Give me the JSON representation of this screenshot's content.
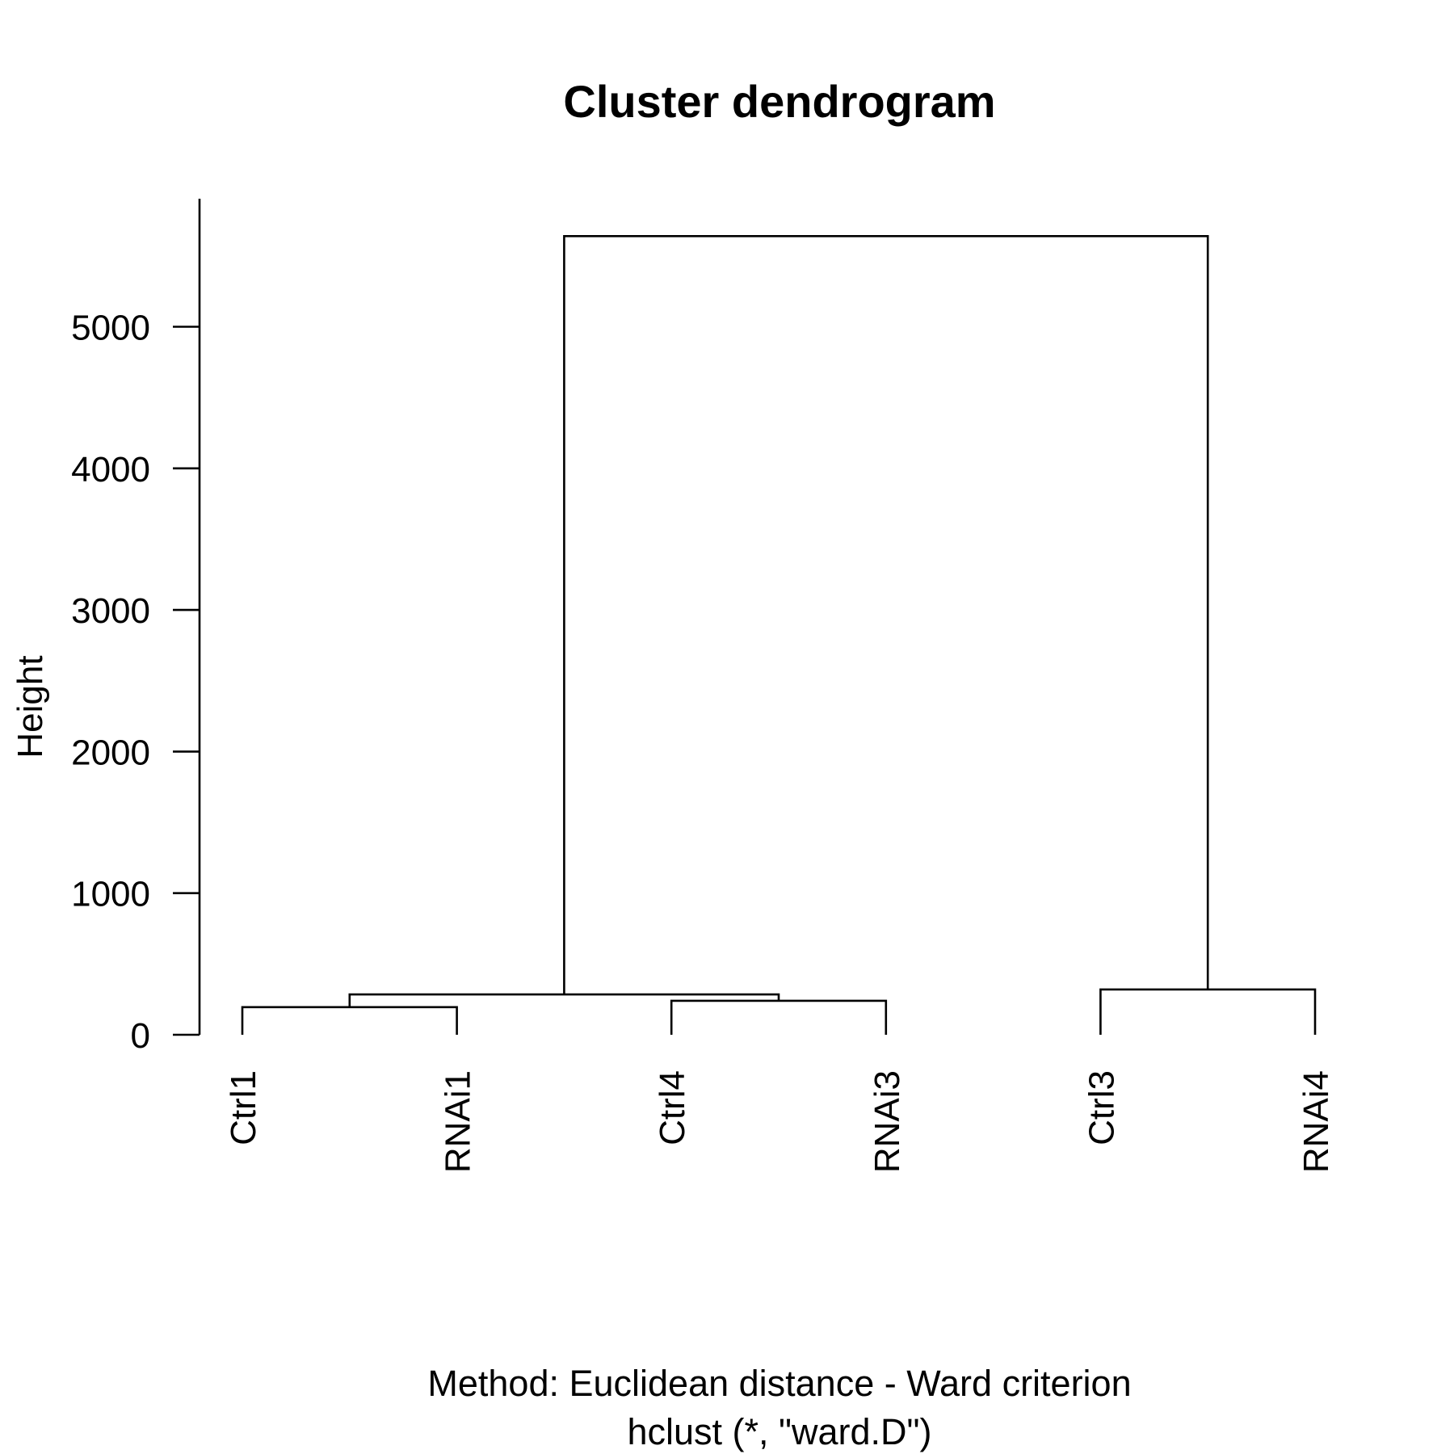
{
  "chart_data": {
    "type": "dendrogram",
    "title": "Cluster dendrogram",
    "ylabel": "Height",
    "xlabel_lines": [
      "Method: Euclidean distance - Ward criterion",
      "hclust (*, \"ward.D\")"
    ],
    "ylim": [
      0,
      5900
    ],
    "y_ticks": [
      0,
      1000,
      2000,
      3000,
      4000,
      5000
    ],
    "leaves": [
      "Ctrl1",
      "RNAi1",
      "Ctrl4",
      "RNAi3",
      "Ctrl3",
      "RNAi4"
    ],
    "merges": [
      {
        "left": "Ctrl1",
        "right": "RNAi1",
        "height": 195
      },
      {
        "left": "Ctrl4",
        "right": "RNAi3",
        "height": 240
      },
      {
        "left": "(Ctrl1,RNAi1)",
        "right": "(Ctrl4,RNAi3)",
        "height": 285
      },
      {
        "left": "Ctrl3",
        "right": "RNAi4",
        "height": 320
      },
      {
        "left": "(Ctrl1,RNAi1,Ctrl4,RNAi3)",
        "right": "(Ctrl3,RNAi4)",
        "height": 5640
      }
    ]
  }
}
